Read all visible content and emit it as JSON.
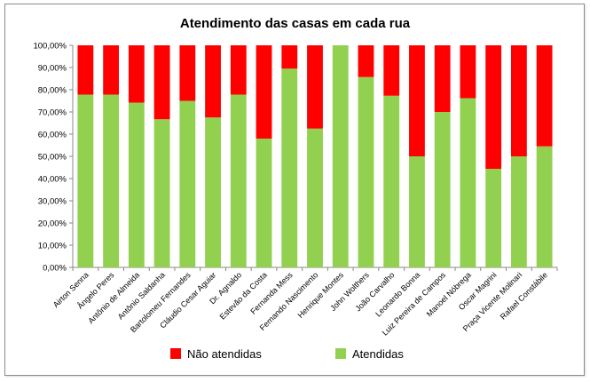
{
  "chart_data": {
    "type": "bar",
    "stacked": true,
    "title": "Atendimento das casas em cada rua",
    "categories": [
      "Airton Senna",
      "Ângelo Peres",
      "Antônio de Almeida",
      "Antônio Saldanha",
      "Bartolomeu Fernandes",
      "Cláudio Cesar Aguiar",
      "Dr. Agnaldo",
      "Estevão da Costa",
      "Fernanda Mess",
      "Fernando Nascimento",
      "Henrique Montes",
      "John Wolthers",
      "João Carvalho",
      "Leonardo Bonna",
      "Luiz Pereira de Campos",
      "Manoel Nóbrega",
      "Oscar Magrini",
      "Praça Vicente Molinari",
      "Rafael Constábile"
    ],
    "series": [
      {
        "name": "Atendidas",
        "color": "#92d050",
        "values": [
          77.8,
          77.8,
          74.2,
          66.7,
          75.0,
          67.5,
          77.8,
          58.0,
          89.5,
          62.5,
          100,
          85.7,
          77.3,
          50.0,
          70.0,
          76.2,
          44.4,
          50.0,
          54.5
        ]
      },
      {
        "name": "Não atendidas",
        "color": "#ff0000",
        "values": [
          22.2,
          22.2,
          25.8,
          33.3,
          25.0,
          32.5,
          22.2,
          42.0,
          10.5,
          37.5,
          0,
          14.3,
          22.7,
          50.0,
          30.0,
          23.8,
          55.6,
          50.0,
          45.5
        ]
      }
    ],
    "ylim": [
      0,
      100
    ],
    "yticks": [
      "0,00%",
      "10,00%",
      "20,00%",
      "30,00%",
      "40,00%",
      "50,00%",
      "60,00%",
      "70,00%",
      "80,00%",
      "90,00%",
      "100,00%"
    ],
    "grid": false,
    "legend": [
      {
        "label": "Não atendidas",
        "color": "#ff0000"
      },
      {
        "label": "Atendidas",
        "color": "#92d050"
      }
    ],
    "legend_position": "bottom"
  }
}
